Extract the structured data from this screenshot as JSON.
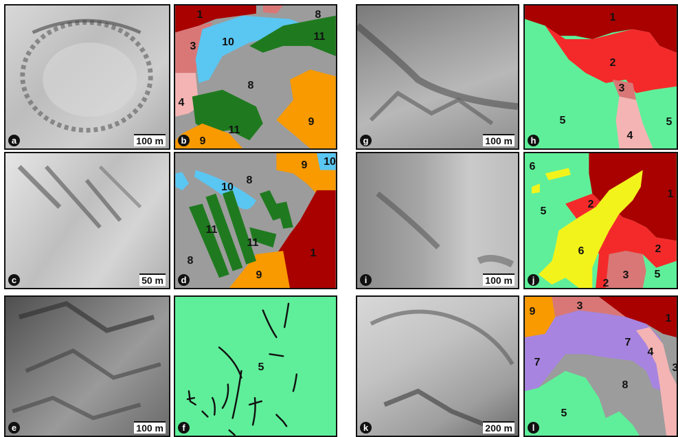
{
  "colors": {
    "unit_1": "#a90000",
    "unit_2": "#f42a2a",
    "unit_3": "#d97777",
    "unit_4": "#f4b4b4",
    "unit_5": "#5fef9a",
    "unit_6": "#f3f31c",
    "unit_7": "#a784e0",
    "unit_8": "#9c9c9c",
    "unit_9": "#f89a00",
    "unit_10": "#5ac6f2",
    "unit_11": "#1f7a1f"
  },
  "panels": {
    "a": {
      "label": "a",
      "scale": "100 m"
    },
    "b": {
      "label": "b",
      "units": [
        "1",
        "3",
        "10",
        "8",
        "11",
        "4",
        "8",
        "9",
        "11",
        "9"
      ]
    },
    "c": {
      "label": "c",
      "scale": "50 m"
    },
    "d": {
      "label": "d",
      "units": [
        "10",
        "9",
        "10",
        "8",
        "11",
        "11",
        "8",
        "9",
        "1"
      ]
    },
    "e": {
      "label": "e",
      "scale": "100 m"
    },
    "f": {
      "label": "f",
      "units": [
        "5"
      ]
    },
    "g": {
      "label": "g",
      "scale": "100 m"
    },
    "h": {
      "label": "h",
      "units": [
        "1",
        "2",
        "3",
        "5",
        "4",
        "5"
      ]
    },
    "i": {
      "label": "i",
      "scale": "100 m"
    },
    "j": {
      "label": "j",
      "units": [
        "6",
        "1",
        "2",
        "5",
        "6",
        "2",
        "3",
        "2",
        "5"
      ]
    },
    "k": {
      "label": "k",
      "scale": "200 m"
    },
    "l": {
      "label": "l",
      "units": [
        "9",
        "3",
        "1",
        "7",
        "4",
        "7",
        "3",
        "8",
        "5"
      ]
    }
  }
}
